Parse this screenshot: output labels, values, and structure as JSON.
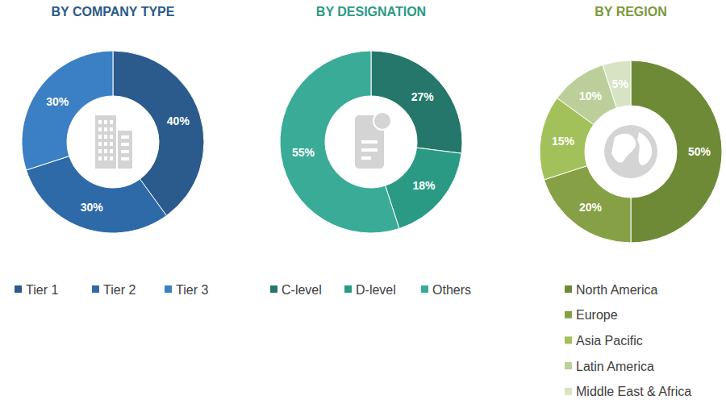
{
  "chart_data": [
    {
      "type": "pie",
      "title": "BY COMPANY TYPE",
      "categories": [
        "Tier 1",
        "Tier 2",
        "Tier 3"
      ],
      "values": [
        40,
        30,
        30
      ],
      "value_labels": [
        "40%",
        "30%",
        "30%"
      ],
      "colors": [
        "#2b5a8c",
        "#2f6aa8",
        "#3b7fc4"
      ],
      "data_labels": true,
      "legend": "bottom"
    },
    {
      "type": "pie",
      "title": "BY DESIGNATION",
      "categories": [
        "C-level",
        "D-level",
        "Others"
      ],
      "values": [
        27,
        18,
        55
      ],
      "value_labels": [
        "27%",
        "18%",
        "55%"
      ],
      "colors": [
        "#24776a",
        "#2a9a85",
        "#3aab97"
      ],
      "data_labels": true,
      "legend": "bottom"
    },
    {
      "type": "pie",
      "title": "BY REGION",
      "categories": [
        "North America",
        "Europe",
        "Asia Pacific",
        "Latin America",
        "Middle East & Africa"
      ],
      "values": [
        50,
        20,
        15,
        10,
        5
      ],
      "value_labels": [
        "50%",
        "20%",
        "15%",
        "10%",
        "5%"
      ],
      "colors": [
        "#6f8a37",
        "#86a046",
        "#a3c15a",
        "#bccf9a",
        "#d8e3c4"
      ],
      "data_labels": true,
      "legend": "bottom"
    }
  ]
}
